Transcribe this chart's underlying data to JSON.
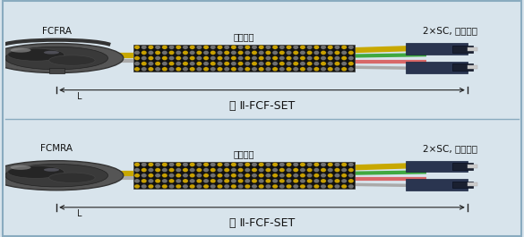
{
  "bg_outer": "#d8e4ec",
  "bg_panel": "#f2f4f6",
  "border_color": "#8aabbf",
  "divider_color": "#8aabbf",
  "title1": "含 Ⅱ-FCF-SET",
  "title2": "含 Ⅱ-FCF-SET",
  "label_left1": "FCFRA",
  "label_left2": "FCMRA",
  "label_mid1": "编织套管",
  "label_mid2": "编织套管",
  "label_right1": "2×SC, 尼龙插头",
  "label_right2": "2×SC, 尼龙插头",
  "dim_label": "L",
  "connector_left_color": "#3a3a3a",
  "connector_right_color": "#2a3a5a",
  "wire_yellow": "#c8a800",
  "wire_gray": "#aaaaaa",
  "wire_green": "#40a840",
  "wire_red": "#c04040",
  "wire_blue": "#4060c0",
  "braid_gold": "#c8a000",
  "braid_dark": "#2a2a2a",
  "braid_gray": "#707070"
}
